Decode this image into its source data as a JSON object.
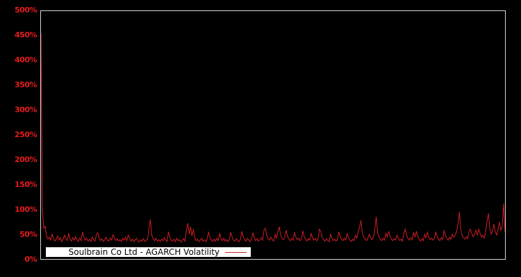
{
  "colors": {
    "background": "#000000",
    "line": "#cf1e26",
    "axis_labels": "#e41b1e",
    "frame": "#d8d8d8",
    "legend_background": "#ffffff",
    "legend_text": "#000000"
  },
  "axis": {
    "y_ticks": [
      "500%",
      "450%",
      "400%",
      "350%",
      "300%",
      "250%",
      "200%",
      "150%",
      "100%",
      "50%",
      "0%"
    ]
  },
  "legend": {
    "label": "Soulbrain Co Ltd - AGARCH Volatility"
  },
  "chart_data": {
    "type": "line",
    "title": "",
    "xlabel": "",
    "ylabel": "",
    "ylim_pct": [
      0,
      500
    ],
    "y_tick_step_pct": 50,
    "x_axis_labels": "none",
    "grid": false,
    "legend_position": "bottom-left",
    "legend_entries": [
      "Soulbrain Co Ltd - AGARCH Volatility"
    ],
    "series": [
      {
        "name": "Soulbrain Co Ltd - AGARCH Volatility",
        "unit": "percent",
        "description": "AGARCH volatility series; starts near 455% then decays rapidly and oscillates in a 30-60% band with occasional spikes (80%, 72%, 78%, 85%, 95%, 92%) and a final spike near 112%.",
        "values_pct": [
          455,
          100,
          62,
          66,
          46,
          40,
          44,
          38,
          50,
          42,
          36,
          40,
          46,
          38,
          43,
          35,
          40,
          48,
          41,
          37,
          52,
          40,
          36,
          43,
          38,
          45,
          39,
          35,
          42,
          37,
          55,
          44,
          38,
          42,
          36,
          40,
          35,
          44,
          39,
          36,
          50,
          53,
          42,
          37,
          41,
          35,
          39,
          44,
          38,
          36,
          42,
          38,
          49,
          43,
          37,
          41,
          36,
          39,
          35,
          42,
          38,
          44,
          37,
          48,
          42,
          36,
          40,
          35,
          38,
          42,
          37,
          34,
          39,
          36,
          41,
          35,
          38,
          40,
          62,
          80,
          48,
          41,
          37,
          42,
          36,
          39,
          35,
          40,
          37,
          43,
          38,
          35,
          55,
          44,
          38,
          36,
          40,
          35,
          42,
          37,
          39,
          34,
          38,
          41,
          36,
          58,
          72,
          50,
          65,
          46,
          60,
          42,
          37,
          40,
          35,
          38,
          42,
          36,
          39,
          35,
          41,
          55,
          43,
          38,
          35,
          40,
          36,
          42,
          37,
          52,
          41,
          37,
          42,
          36,
          39,
          35,
          40,
          54,
          44,
          38,
          36,
          41,
          37,
          35,
          39,
          56,
          45,
          39,
          36,
          42,
          38,
          35,
          40,
          53,
          43,
          37,
          41,
          36,
          39,
          43,
          38,
          58,
          62,
          47,
          41,
          38,
          44,
          39,
          36,
          50,
          42,
          55,
          65,
          48,
          42,
          39,
          44,
          58,
          46,
          40,
          37,
          42,
          38,
          54,
          44,
          39,
          42,
          37,
          40,
          57,
          45,
          40,
          36,
          41,
          38,
          52,
          43,
          38,
          42,
          37,
          40,
          60,
          56,
          44,
          39,
          36,
          41,
          37,
          35,
          50,
          42,
          37,
          40,
          36,
          39,
          55,
          45,
          40,
          37,
          42,
          38,
          52,
          43,
          38,
          35,
          40,
          37,
          48,
          42,
          55,
          64,
          78,
          52,
          44,
          40,
          37,
          42,
          50,
          43,
          39,
          45,
          60,
          85,
          55,
          45,
          40,
          37,
          42,
          38,
          52,
          44,
          56,
          46,
          40,
          37,
          41,
          38,
          48,
          42,
          37,
          40,
          36,
          52,
          60,
          47,
          41,
          38,
          43,
          39,
          54,
          44,
          56,
          45,
          40,
          36,
          41,
          37,
          50,
          43,
          54,
          44,
          39,
          42,
          38,
          41,
          55,
          45,
          40,
          37,
          43,
          39,
          58,
          47,
          42,
          38,
          44,
          40,
          50,
          44,
          48,
          55,
          70,
          95,
          60,
          48,
          43,
          40,
          45,
          41,
          55,
          60,
          52,
          45,
          50,
          58,
          48,
          60,
          52,
          44,
          48,
          42,
          55,
          75,
          92,
          62,
          50,
          58,
          70,
          55,
          48,
          60,
          75,
          58,
          65,
          112,
          55
        ]
      }
    ]
  }
}
